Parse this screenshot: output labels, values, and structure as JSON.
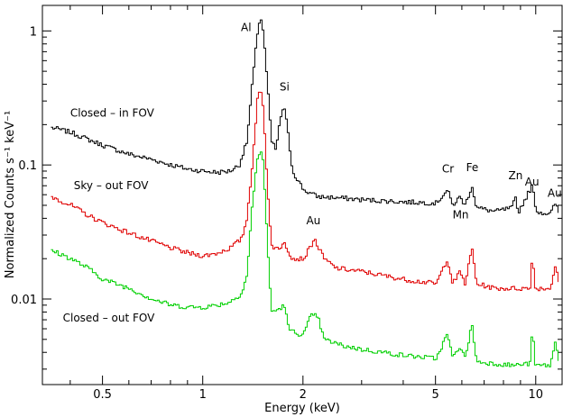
{
  "chart_data": {
    "type": "line",
    "title": "",
    "xlabel": "Energy (keV)",
    "ylabel": "Normalized Counts s⁻¹ keV⁻¹",
    "xscale": "log",
    "yscale": "log",
    "xlim": [
      0.33,
      12.0
    ],
    "ylim": [
      0.0023,
      1.55
    ],
    "grid": false,
    "legend": "none",
    "x_ticks": [
      {
        "value": 0.5,
        "label": "0.5"
      },
      {
        "value": 1,
        "label": "1"
      },
      {
        "value": 2,
        "label": "2"
      },
      {
        "value": 5,
        "label": "5"
      },
      {
        "value": 10,
        "label": "10"
      }
    ],
    "y_ticks": [
      {
        "value": 0.01,
        "label": "0.01"
      },
      {
        "value": 0.1,
        "label": "0.1"
      },
      {
        "value": 1,
        "label": "1"
      }
    ],
    "series": [
      {
        "label": "Closed – in FOV",
        "color": "#000000",
        "label_pos": [
          0.4,
          0.23
        ],
        "points": [
          [
            0.35,
            0.19
          ],
          [
            0.4,
            0.175
          ],
          [
            0.45,
            0.155
          ],
          [
            0.5,
            0.14
          ],
          [
            0.6,
            0.12
          ],
          [
            0.7,
            0.11
          ],
          [
            0.8,
            0.1
          ],
          [
            0.9,
            0.093
          ],
          [
            1.0,
            0.09
          ],
          [
            1.1,
            0.088
          ],
          [
            1.2,
            0.09
          ],
          [
            1.28,
            0.1
          ],
          [
            1.35,
            0.15
          ],
          [
            1.4,
            0.4
          ],
          [
            1.45,
            0.95
          ],
          [
            1.48,
            1.3
          ],
          [
            1.51,
            1.0
          ],
          [
            1.55,
            0.45
          ],
          [
            1.6,
            0.15
          ],
          [
            1.65,
            0.13
          ],
          [
            1.7,
            0.22
          ],
          [
            1.74,
            0.28
          ],
          [
            1.78,
            0.2
          ],
          [
            1.85,
            0.09
          ],
          [
            2.0,
            0.065
          ],
          [
            2.2,
            0.058
          ],
          [
            2.5,
            0.057
          ],
          [
            3.0,
            0.055
          ],
          [
            4.0,
            0.053
          ],
          [
            5.0,
            0.052
          ],
          [
            5.4,
            0.065
          ],
          [
            5.6,
            0.05
          ],
          [
            5.9,
            0.058
          ],
          [
            6.1,
            0.05
          ],
          [
            6.4,
            0.07
          ],
          [
            6.6,
            0.048
          ],
          [
            7.5,
            0.045
          ],
          [
            8.5,
            0.048
          ],
          [
            8.6,
            0.06
          ],
          [
            8.8,
            0.044
          ],
          [
            9.7,
            0.07
          ],
          [
            10.0,
            0.045
          ],
          [
            11.0,
            0.043
          ],
          [
            11.4,
            0.052
          ],
          [
            11.8,
            0.04
          ]
        ]
      },
      {
        "label": "Sky – out FOV",
        "color": "#e00000",
        "label_pos": [
          0.41,
          0.066
        ],
        "points": [
          [
            0.35,
            0.058
          ],
          [
            0.4,
            0.05
          ],
          [
            0.45,
            0.042
          ],
          [
            0.5,
            0.037
          ],
          [
            0.6,
            0.031
          ],
          [
            0.7,
            0.027
          ],
          [
            0.8,
            0.024
          ],
          [
            0.9,
            0.022
          ],
          [
            1.0,
            0.021
          ],
          [
            1.1,
            0.022
          ],
          [
            1.2,
            0.024
          ],
          [
            1.3,
            0.028
          ],
          [
            1.35,
            0.04
          ],
          [
            1.4,
            0.1
          ],
          [
            1.45,
            0.3
          ],
          [
            1.48,
            0.37
          ],
          [
            1.51,
            0.28
          ],
          [
            1.55,
            0.08
          ],
          [
            1.6,
            0.025
          ],
          [
            1.7,
            0.023
          ],
          [
            1.74,
            0.028
          ],
          [
            1.78,
            0.024
          ],
          [
            1.85,
            0.02
          ],
          [
            2.0,
            0.02
          ],
          [
            2.1,
            0.025
          ],
          [
            2.15,
            0.028
          ],
          [
            2.2,
            0.025
          ],
          [
            2.3,
            0.02
          ],
          [
            2.5,
            0.017
          ],
          [
            3.0,
            0.016
          ],
          [
            4.0,
            0.014
          ],
          [
            5.0,
            0.013
          ],
          [
            5.4,
            0.02
          ],
          [
            5.6,
            0.013
          ],
          [
            5.9,
            0.016
          ],
          [
            6.1,
            0.013
          ],
          [
            6.4,
            0.024
          ],
          [
            6.6,
            0.013
          ],
          [
            7.5,
            0.012
          ],
          [
            8.5,
            0.012
          ],
          [
            9.6,
            0.012
          ],
          [
            9.7,
            0.023
          ],
          [
            9.9,
            0.012
          ],
          [
            11.0,
            0.012
          ],
          [
            11.4,
            0.018
          ],
          [
            11.8,
            0.011
          ]
        ]
      },
      {
        "label": "Closed – out FOV",
        "color": "#00d000",
        "label_pos": [
          0.38,
          0.0068
        ],
        "points": [
          [
            0.35,
            0.023
          ],
          [
            0.4,
            0.02
          ],
          [
            0.45,
            0.017
          ],
          [
            0.5,
            0.014
          ],
          [
            0.6,
            0.012
          ],
          [
            0.7,
            0.01
          ],
          [
            0.8,
            0.009
          ],
          [
            0.9,
            0.0087
          ],
          [
            1.0,
            0.0087
          ],
          [
            1.1,
            0.009
          ],
          [
            1.2,
            0.0095
          ],
          [
            1.3,
            0.011
          ],
          [
            1.35,
            0.015
          ],
          [
            1.4,
            0.05
          ],
          [
            1.45,
            0.11
          ],
          [
            1.48,
            0.13
          ],
          [
            1.51,
            0.11
          ],
          [
            1.55,
            0.03
          ],
          [
            1.6,
            0.008
          ],
          [
            1.7,
            0.0085
          ],
          [
            1.75,
            0.009
          ],
          [
            1.8,
            0.006
          ],
          [
            1.9,
            0.0055
          ],
          [
            2.0,
            0.0055
          ],
          [
            2.1,
            0.0075
          ],
          [
            2.2,
            0.0075
          ],
          [
            2.3,
            0.005
          ],
          [
            2.6,
            0.0045
          ],
          [
            3.0,
            0.0042
          ],
          [
            4.0,
            0.0038
          ],
          [
            5.0,
            0.0036
          ],
          [
            5.4,
            0.0055
          ],
          [
            5.6,
            0.0036
          ],
          [
            5.9,
            0.0045
          ],
          [
            6.1,
            0.0036
          ],
          [
            6.4,
            0.0065
          ],
          [
            6.6,
            0.0034
          ],
          [
            7.5,
            0.0033
          ],
          [
            8.5,
            0.0032
          ],
          [
            9.6,
            0.0033
          ],
          [
            9.7,
            0.0065
          ],
          [
            9.9,
            0.0032
          ],
          [
            11.0,
            0.0032
          ],
          [
            11.4,
            0.0048
          ],
          [
            11.8,
            0.003
          ]
        ]
      }
    ],
    "annotations": [
      {
        "text": "Al",
        "x": 1.35,
        "y": 1.0
      },
      {
        "text": "Si",
        "x": 1.76,
        "y": 0.36
      },
      {
        "text": "Au",
        "x": 2.15,
        "y": 0.036
      },
      {
        "text": "Cr",
        "x": 5.45,
        "y": 0.088
      },
      {
        "text": "Fe",
        "x": 6.45,
        "y": 0.09
      },
      {
        "text": "Mn",
        "x": 5.95,
        "y": 0.04
      },
      {
        "text": "Zn",
        "x": 8.7,
        "y": 0.078
      },
      {
        "text": "Au",
        "x": 9.75,
        "y": 0.07
      },
      {
        "text": "Au",
        "x": 11.4,
        "y": 0.058
      }
    ]
  }
}
